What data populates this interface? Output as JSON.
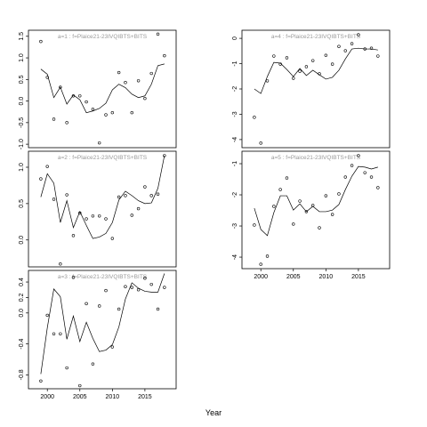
{
  "xlabel": "Year",
  "chart_data": [
    {
      "type": "scatter",
      "title": "a=1 : f=Plaice21-23IVQIBTS+BITS",
      "x": [
        1999,
        2000,
        2001,
        2002,
        2003,
        2004,
        2005,
        2006,
        2007,
        2008,
        2009,
        2010,
        2011,
        2012,
        2013,
        2014,
        2015,
        2016,
        2017,
        2018
      ],
      "points": [
        1.38,
        0.55,
        -0.42,
        0.32,
        -0.5,
        0.12,
        0.12,
        -0.02,
        -0.19,
        -0.97,
        -0.32,
        -0.27,
        0.66,
        0.43,
        -0.27,
        0.47,
        0.06,
        0.64,
        1.55,
        1.05
      ],
      "line": [
        0.74,
        0.62,
        0.08,
        0.32,
        -0.07,
        0.14,
        0.03,
        -0.27,
        -0.23,
        -0.17,
        -0.05,
        0.26,
        0.39,
        0.31,
        0.16,
        0.08,
        0.12,
        0.39,
        0.82,
        0.86
      ],
      "xlim": [
        1997.1,
        2019.8
      ],
      "ylim": [
        -1.08,
        1.64
      ],
      "yticks": [
        {
          "value": -1,
          "label": "-1.0"
        },
        -0.5,
        {
          "value": 0,
          "label": "0.0"
        },
        0.5,
        {
          "value": 1,
          "label": "1.0"
        },
        1.5
      ]
    },
    {
      "type": "scatter",
      "title": "a=2 : f=Plaice21-23IVQIBTS+BITS",
      "x": [
        1999,
        2000,
        2001,
        2002,
        2003,
        2004,
        2005,
        2006,
        2007,
        2008,
        2009,
        2010,
        2011,
        2012,
        2013,
        2014,
        2015,
        2016,
        2017,
        2018
      ],
      "points": [
        0.84,
        1.01,
        0.56,
        -0.33,
        0.62,
        0.06,
        0.37,
        0.29,
        0.33,
        0.33,
        0.29,
        0.02,
        0.59,
        0.61,
        0.34,
        0.43,
        0.73,
        0.61,
        0.63,
        1.16
      ],
      "line": [
        0.59,
        0.91,
        0.78,
        0.24,
        0.54,
        0.17,
        0.39,
        0.2,
        0.02,
        0.04,
        0.09,
        0.24,
        0.55,
        0.67,
        0.61,
        0.54,
        0.5,
        0.51,
        0.71,
        1.16
      ],
      "xlim": [
        1997.1,
        2019.8
      ],
      "ylim": [
        -0.37,
        1.22
      ],
      "yticks": [
        {
          "value": 0,
          "label": "0.0"
        },
        0.5,
        {
          "value": 1,
          "label": "1.0"
        }
      ]
    },
    {
      "type": "scatter",
      "title": "a=3 : f=Plaice21-23IVQIBTS+BITS",
      "x": [
        1999,
        2000,
        2001,
        2002,
        2003,
        2004,
        2005,
        2006,
        2007,
        2008,
        2009,
        2010,
        2011,
        2012,
        2013,
        2014,
        2015,
        2016,
        2017,
        2018
      ],
      "points": [
        -0.88,
        -0.03,
        -0.27,
        -0.27,
        -0.71,
        0.46,
        -0.94,
        0.12,
        -0.66,
        0.09,
        0.29,
        -0.44,
        0.05,
        0.34,
        0.33,
        0.3,
        0.45,
        0.37,
        0.05,
        0.33
      ],
      "line": [
        -0.79,
        -0.19,
        0.31,
        0.21,
        -0.34,
        -0.04,
        -0.37,
        -0.12,
        -0.33,
        -0.5,
        -0.48,
        -0.41,
        -0.18,
        0.18,
        0.39,
        0.32,
        0.28,
        0.27,
        0.27,
        0.51
      ],
      "xlim": [
        1997.1,
        2019.8
      ],
      "ylim": [
        -0.98,
        0.55
      ],
      "xticks": [
        2000,
        2005,
        2010,
        2015
      ],
      "yticks": [
        -0.8,
        -0.4,
        {
          "value": 0,
          "label": "0.0"
        },
        0.2,
        0.4
      ]
    },
    {
      "type": "scatter",
      "title": "a=4 : f=Plaice21-23IVQIBTS+BITS",
      "x": [
        1999,
        2000,
        2001,
        2002,
        2003,
        2004,
        2005,
        2006,
        2007,
        2008,
        2009,
        2010,
        2011,
        2012,
        2013,
        2014,
        2015,
        2016,
        2017,
        2018
      ],
      "points": [
        -3.12,
        -4.14,
        -1.68,
        -0.7,
        -1.02,
        -0.77,
        -1.58,
        -1.3,
        -1.12,
        -0.88,
        -1.4,
        -0.67,
        -1.02,
        -0.32,
        -0.49,
        -0.21,
        0.14,
        -0.42,
        -0.39,
        -0.7
      ],
      "line": [
        -2.0,
        -2.18,
        -1.51,
        -0.95,
        -0.98,
        -1.23,
        -1.51,
        -1.19,
        -1.47,
        -1.26,
        -1.44,
        -1.61,
        -1.54,
        -1.26,
        -0.81,
        -0.42,
        -0.39,
        -0.42,
        -0.42,
        -0.46
      ],
      "xlim": [
        1997.1,
        2019.8
      ],
      "ylim": [
        -4.32,
        0.32
      ],
      "yticks": [
        -4,
        -3,
        -2,
        -1,
        0
      ]
    },
    {
      "type": "scatter",
      "title": "a=5 : f=Plaice21-23IVQIBTS+BITS",
      "x": [
        1999,
        2000,
        2001,
        2002,
        2003,
        2004,
        2005,
        2006,
        2007,
        2008,
        2009,
        2010,
        2011,
        2012,
        2013,
        2014,
        2015,
        2016,
        2017,
        2018
      ],
      "points": [
        -2.97,
        -4.23,
        -3.97,
        -2.37,
        -1.83,
        -1.46,
        -2.94,
        -2.2,
        -2.54,
        -2.34,
        -3.06,
        -2.03,
        -2.63,
        -1.97,
        -1.43,
        -1.06,
        -0.74,
        -1.29,
        -1.43,
        -1.77
      ],
      "line": [
        -2.43,
        -3.11,
        -3.31,
        -2.57,
        -2.03,
        -2.03,
        -2.49,
        -2.29,
        -2.54,
        -2.37,
        -2.54,
        -2.54,
        -2.49,
        -2.31,
        -1.83,
        -1.4,
        -1.09,
        -1.11,
        -1.17,
        -1.11
      ],
      "xlim": [
        1997.1,
        2019.8
      ],
      "ylim": [
        -4.37,
        -0.6
      ],
      "xticks": [
        2000,
        2005,
        2010,
        2015
      ],
      "yticks": [
        -4,
        -3,
        -2,
        -1
      ]
    }
  ]
}
